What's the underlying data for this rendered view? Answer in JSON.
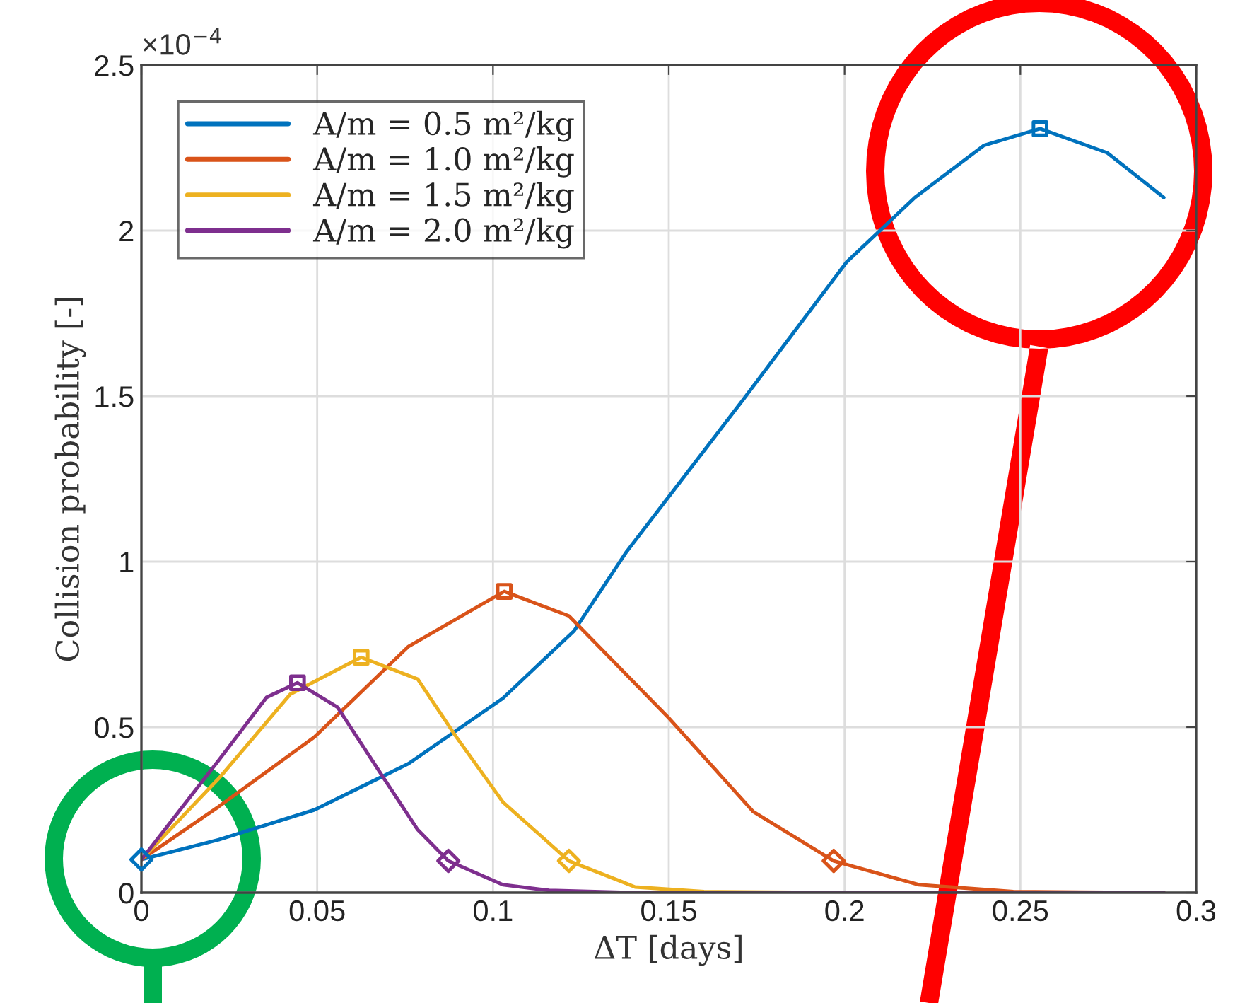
{
  "chart_data": {
    "type": "line",
    "xlabel": "ΔT [days]",
    "ylabel": "Collision probability [-]",
    "annotations": [
      "×10$^{−4}$"
    ],
    "xlim": [
      0,
      0.3
    ],
    "ylim": [
      0,
      2.5
    ],
    "xticks": [
      0,
      0.05,
      0.1,
      0.15,
      0.2,
      0.25,
      0.3
    ],
    "yticks": [
      0,
      0.5,
      1,
      1.5,
      2,
      2.5
    ],
    "grid": true,
    "legend": "top left",
    "line_style": "solid",
    "series": [
      {
        "name": "A/m = 0.5 m²/kg",
        "color": "#0072bd",
        "x": [
          0,
          0.022,
          0.0492,
          0.076,
          0.1028,
          0.123,
          0.138,
          0.1712,
          0.2005,
          0.22,
          0.2396,
          0.2556,
          0.2747,
          0.2908
        ],
        "values": [
          0.1,
          0.16,
          0.25,
          0.39,
          0.587,
          0.79,
          1.03,
          1.49,
          1.904,
          2.1,
          2.257,
          2.308,
          2.235,
          2.1
        ]
      },
      {
        "name": "A/m = 1.0 m²/kg",
        "color": "#d95319",
        "x": [
          0,
          0.022,
          0.0492,
          0.076,
          0.1032,
          0.1216,
          0.1498,
          0.174,
          0.1969,
          0.2211,
          0.248,
          0.2908
        ],
        "values": [
          0.1,
          0.26,
          0.47,
          0.744,
          0.91,
          0.836,
          0.53,
          0.245,
          0.096,
          0.024,
          0.003,
          0
        ]
      },
      {
        "name": "A/m = 1.5 m²/kg",
        "color": "#edb120",
        "x": [
          0,
          0.022,
          0.0424,
          0.0625,
          0.0786,
          0.0894,
          0.1028,
          0.1216,
          0.1367,
          0.1404,
          0.16,
          0.2,
          0.2908
        ],
        "values": [
          0.1,
          0.345,
          0.6,
          0.711,
          0.645,
          0.473,
          0.274,
          0.096,
          0.033,
          0.017,
          0.003,
          0,
          0
        ]
      },
      {
        "name": "A/m = 2.0 m²/kg",
        "color": "#7e2f8e",
        "x": [
          0,
          0.022,
          0.0356,
          0.0444,
          0.0558,
          0.069,
          0.0786,
          0.0873,
          0.1028,
          0.116,
          0.14,
          0.2908
        ],
        "values": [
          0.1,
          0.4,
          0.59,
          0.634,
          0.56,
          0.345,
          0.19,
          0.096,
          0.024,
          0.007,
          0,
          0
        ]
      },
      {
        "type": "scatter",
        "marker": "square",
        "color": "#0072bd",
        "x": [
          0.2556
        ],
        "values": [
          2.308
        ]
      },
      {
        "type": "scatter",
        "marker": "square",
        "color": "#d95319",
        "x": [
          0.1032
        ],
        "values": [
          0.91
        ]
      },
      {
        "type": "scatter",
        "marker": "square",
        "color": "#edb120",
        "x": [
          0.0625
        ],
        "values": [
          0.711
        ]
      },
      {
        "type": "scatter",
        "marker": "square",
        "color": "#7e2f8e",
        "x": [
          0.0444
        ],
        "values": [
          0.634
        ]
      },
      {
        "type": "scatter",
        "marker": "diamond",
        "color": "#d95319",
        "x": [
          0.1969
        ],
        "values": [
          0.096
        ]
      },
      {
        "type": "scatter",
        "marker": "diamond",
        "color": "#edb120",
        "x": [
          0.1216
        ],
        "values": [
          0.096
        ]
      },
      {
        "type": "scatter",
        "marker": "diamond",
        "color": "#7e2f8e",
        "x": [
          0.0873
        ],
        "values": [
          0.096
        ]
      },
      {
        "type": "scatter",
        "marker": "diamond",
        "color": "#0072bd",
        "x": [
          0
        ],
        "values": [
          0.1
        ]
      }
    ]
  }
}
